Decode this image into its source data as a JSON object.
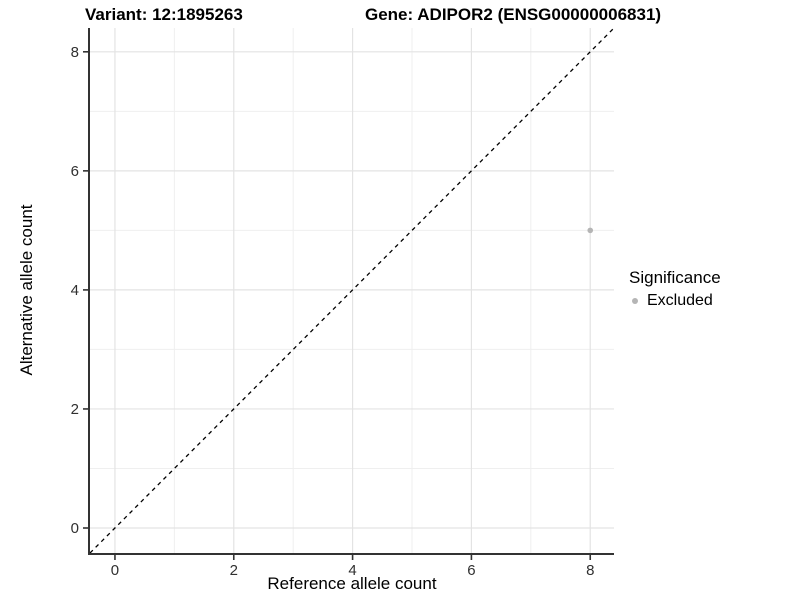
{
  "chart_data": {
    "type": "scatter",
    "title_left": "Variant: 12:1895263",
    "title_right": "Gene: ADIPOR2 (ENSG00000006831)",
    "xlabel": "Reference allele count",
    "ylabel": "Alternative allele count",
    "xlim": [
      -0.42,
      8.4
    ],
    "ylim": [
      -0.42,
      8.4
    ],
    "xticks": [
      0,
      2,
      4,
      6,
      8
    ],
    "yticks": [
      0,
      2,
      4,
      6,
      8
    ],
    "minor_xticks": [
      1,
      3,
      5,
      7
    ],
    "minor_yticks": [
      1,
      3,
      5,
      7
    ],
    "grid": true,
    "reference_line": {
      "slope": 1,
      "intercept": 0,
      "style": "dashed",
      "color": "#000000"
    },
    "series": [
      {
        "name": "Excluded",
        "color": "#b5b5b5",
        "points": [
          {
            "x": 8,
            "y": 5
          }
        ],
        "point_radius": 2.8
      }
    ],
    "legend": {
      "title": "Significance",
      "position": "right",
      "items": [
        {
          "label": "Excluded",
          "color": "#b5b5b5"
        }
      ]
    }
  },
  "colors": {
    "background": "#ffffff",
    "grid_major": "#e3e3e3",
    "grid_minor": "#efefef",
    "axis_line": "#333333",
    "tick_mark": "#333333",
    "tick_label": "#303030"
  }
}
